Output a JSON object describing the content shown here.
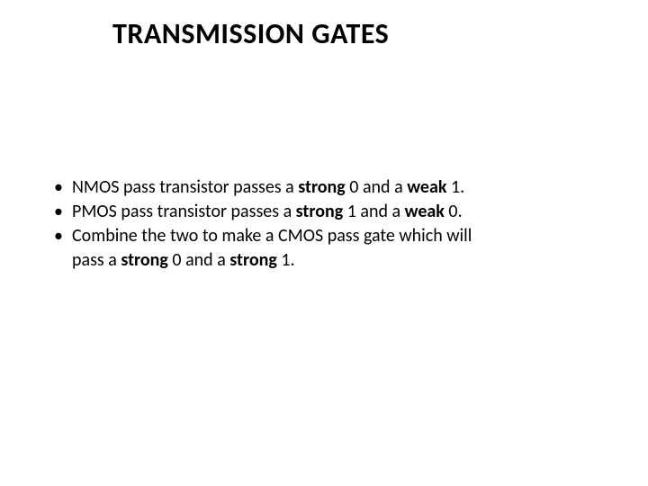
{
  "title": "TRANSMISSION GATES",
  "bullets": {
    "b1_pre": "NMOS pass transistor passes a ",
    "b1_s1": "strong",
    "b1_mid": " 0 and a ",
    "b1_s2": "weak",
    "b1_post": " 1.",
    "b2_pre": "PMOS pass transistor passes a ",
    "b2_s1": "strong",
    "b2_mid": " 1 and a ",
    "b2_s2": "weak",
    "b2_post": " 0.",
    "b3_line1": "Combine the two to make a CMOS pass gate which will",
    "b3_line2_pre": "pass a ",
    "b3_line2_s1": "strong",
    "b3_line2_mid": " 0 and a ",
    "b3_line2_s2": "strong",
    "b3_line2_post": " 1."
  }
}
